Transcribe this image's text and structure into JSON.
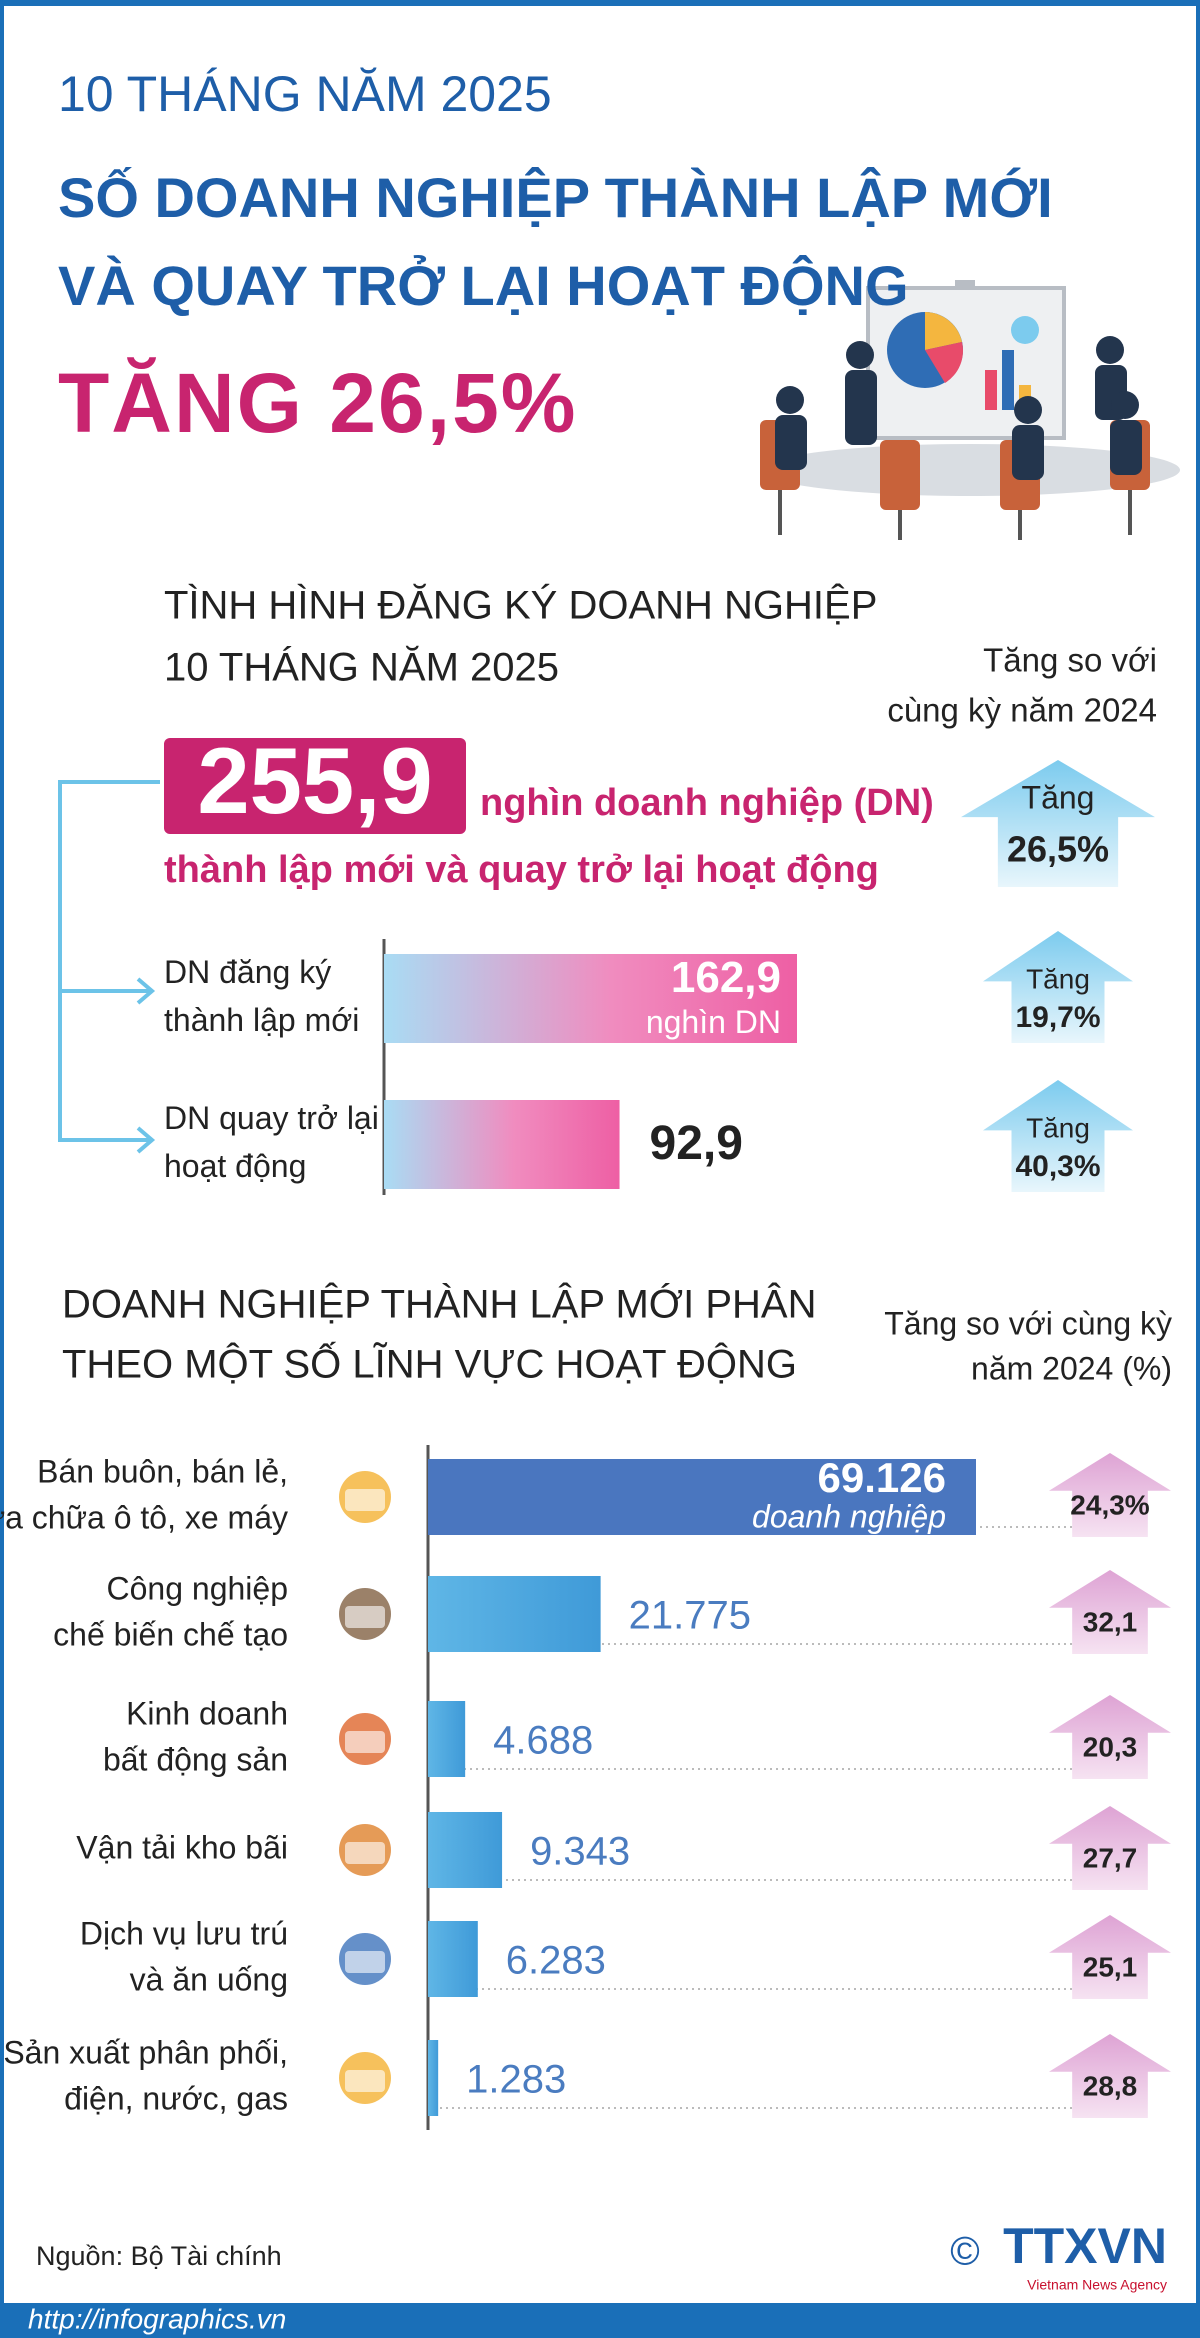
{
  "header": {
    "kicker": "10 THÁNG NĂM 2025",
    "title_lines": [
      "SỐ DOANH NGHIỆP THÀNH LẬP MỚI",
      "VÀ QUAY TRỞ LẠI HOẠT ĐỘNG"
    ],
    "highlight": "TĂNG 26,5%"
  },
  "summary": {
    "title_lines": [
      "TÌNH HÌNH ĐĂNG KÝ DOANH NGHIỆP",
      "10 THÁNG NĂM 2025"
    ],
    "comparison_lines": [
      "Tăng so với",
      "cùng kỳ năm 2024"
    ],
    "total_label": "255,9",
    "total_unit": "nghìn doanh nghiệp (DN)",
    "total_description": "thành lập mới và quay trở lại hoạt động",
    "total_change_label": "Tăng",
    "total_change": "26,5%"
  },
  "chart_data": [
    {
      "type": "bar",
      "categories": [
        [
          "DN đăng ký",
          "thành lập mới"
        ],
        [
          "DN quay trở lại",
          "hoạt động"
        ]
      ],
      "values": [
        162.9,
        92.9
      ],
      "value_labels": [
        "162,9",
        "92,9"
      ],
      "value_unit": "nghìn DN",
      "growth_word": "Tăng",
      "growth_values": [
        19.7,
        40.3
      ],
      "growth_labels": [
        "19,7%",
        "40,3%"
      ]
    },
    {
      "type": "bar",
      "title_lines": [
        "DOANH NGHIỆP THÀNH LẬP MỚI PHÂN",
        "THEO MỘT SỐ LĨNH VỰC HOẠT ĐỘNG"
      ],
      "growth_title_lines": [
        "Tăng so với cùng kỳ",
        "năm 2024 (%)"
      ],
      "categories": [
        [
          "Bán buôn, bán lẻ,",
          "sửa chữa ô tô, xe máy"
        ],
        [
          "Công nghiệp",
          "chế biến chế tạo"
        ],
        [
          "Kinh doanh",
          "bất động sản"
        ],
        [
          "Vận tải kho bãi"
        ],
        [
          "Dịch vụ lưu trú",
          "và ăn uống"
        ],
        [
          "Sản xuất phân phối,",
          "điện, nước, gas"
        ]
      ],
      "values": [
        69126,
        21775,
        4688,
        9343,
        6283,
        1283
      ],
      "value_labels": [
        "69.126",
        "21.775",
        "4.688",
        "9.343",
        "6.283",
        "1.283"
      ],
      "value_unit": "doanh nghiệp",
      "growth_values": [
        24.3,
        32.1,
        20.3,
        27.7,
        25.1,
        28.8
      ],
      "growth_labels": [
        "24,3%",
        "32,1",
        "20,3",
        "27,7",
        "25,1",
        "28,8"
      ]
    }
  ],
  "footer": {
    "source": "Nguồn: Bộ Tài chính",
    "url": "http://infographics.vn",
    "copyright": "©",
    "logo": "TTXVN",
    "logo_sub": "Vietnam News Agency"
  }
}
